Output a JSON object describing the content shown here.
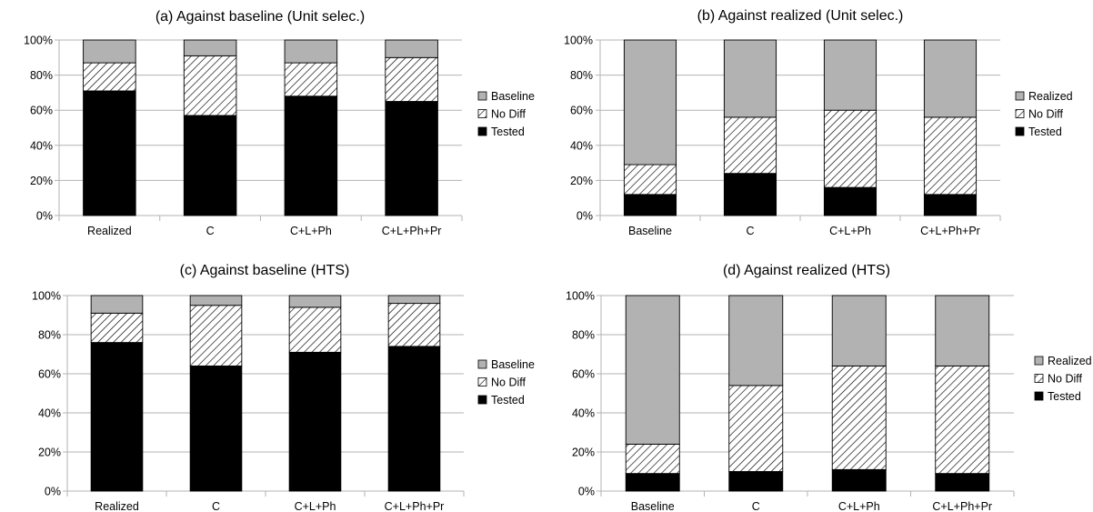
{
  "chart_data": [
    {
      "type": "bar",
      "stacked": true,
      "percent": true,
      "title": "(a) Against baseline (Unit selec.)",
      "categories": [
        "Realized",
        "C",
        "C+L+Ph",
        "C+L+Ph+Pr"
      ],
      "ylim": [
        0,
        100
      ],
      "yticks": [
        "0%",
        "20%",
        "40%",
        "60%",
        "80%",
        "100%"
      ],
      "grid": true,
      "legend_position": "right",
      "series": [
        {
          "name": "Tested",
          "values": [
            71,
            57,
            68,
            65
          ],
          "style": "solid-black"
        },
        {
          "name": "No Diff",
          "values": [
            16,
            34,
            19,
            25
          ],
          "style": "hatched"
        },
        {
          "name": "Baseline",
          "values": [
            13,
            9,
            13,
            10
          ],
          "style": "gray"
        }
      ]
    },
    {
      "type": "bar",
      "stacked": true,
      "percent": true,
      "title": "(b) Against realized (Unit selec.)",
      "categories": [
        "Baseline",
        "C",
        "C+L+Ph",
        "C+L+Ph+Pr"
      ],
      "ylim": [
        0,
        100
      ],
      "yticks": [
        "0%",
        "20%",
        "40%",
        "60%",
        "80%",
        "100%"
      ],
      "grid": true,
      "legend_position": "right",
      "series": [
        {
          "name": "Tested",
          "values": [
            12,
            24,
            16,
            12
          ],
          "style": "solid-black"
        },
        {
          "name": "No Diff",
          "values": [
            17,
            32,
            44,
            44
          ],
          "style": "hatched"
        },
        {
          "name": "Realized",
          "values": [
            71,
            44,
            40,
            44
          ],
          "style": "gray"
        }
      ]
    },
    {
      "type": "bar",
      "stacked": true,
      "percent": true,
      "title": "(c) Against baseline (HTS)",
      "categories": [
        "Realized",
        "C",
        "C+L+Ph",
        "C+L+Ph+Pr"
      ],
      "ylim": [
        0,
        100
      ],
      "yticks": [
        "0%",
        "20%",
        "40%",
        "60%",
        "80%",
        "100%"
      ],
      "grid": true,
      "legend_position": "right",
      "series": [
        {
          "name": "Tested",
          "values": [
            76,
            64,
            71,
            74
          ],
          "style": "solid-black"
        },
        {
          "name": "No Diff",
          "values": [
            15,
            31,
            23,
            22
          ],
          "style": "hatched"
        },
        {
          "name": "Baseline",
          "values": [
            9,
            5,
            6,
            4
          ],
          "style": "gray"
        }
      ]
    },
    {
      "type": "bar",
      "stacked": true,
      "percent": true,
      "title": "(d) Against realized (HTS)",
      "categories": [
        "Baseline",
        "C",
        "C+L+Ph",
        "C+L+Ph+Pr"
      ],
      "ylim": [
        0,
        100
      ],
      "yticks": [
        "0%",
        "20%",
        "40%",
        "60%",
        "80%",
        "100%"
      ],
      "grid": true,
      "legend_position": "right",
      "series": [
        {
          "name": "Tested",
          "values": [
            9,
            10,
            11,
            9
          ],
          "style": "solid-black"
        },
        {
          "name": "No Diff",
          "values": [
            15,
            44,
            53,
            55
          ],
          "style": "hatched"
        },
        {
          "name": "Realized",
          "values": [
            76,
            46,
            36,
            36
          ],
          "style": "gray"
        }
      ]
    }
  ],
  "colors": {
    "tested": "#000000",
    "nodiff": "#ffffff",
    "gray": "#b2b2b2",
    "grid": "#b3b3b3",
    "border": "#000000"
  }
}
